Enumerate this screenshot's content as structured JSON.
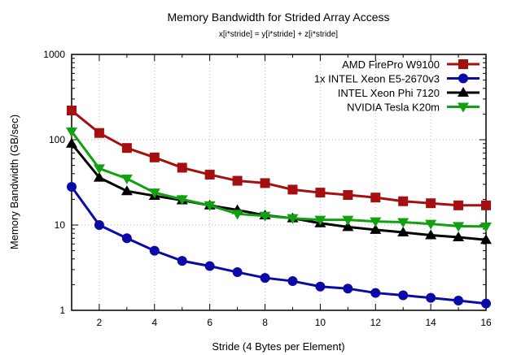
{
  "chart_data": {
    "type": "line",
    "title": "Memory Bandwidth for Strided Array Access",
    "subtitle": "x[i*stride] = y[i*stride] + z[i*stride]",
    "xlabel": "Stride (4 Bytes per Element)",
    "ylabel": "Memory Bandwidth (GB/sec)",
    "xlim": [
      1,
      16
    ],
    "ylim": [
      1,
      1000
    ],
    "yscale": "log",
    "grid": true,
    "legend": "top-right",
    "xticks": [
      2,
      4,
      6,
      8,
      10,
      12,
      14,
      16
    ],
    "yticks": [
      1,
      10,
      100,
      1000
    ],
    "x": [
      1,
      2,
      3,
      4,
      5,
      6,
      7,
      8,
      9,
      10,
      11,
      12,
      13,
      14,
      15,
      16
    ],
    "series": [
      {
        "name": "AMD FirePro W9100",
        "color": "#a50f0f",
        "marker": "square",
        "values": [
          220,
          120,
          80,
          62,
          47,
          39,
          33,
          31,
          26,
          24,
          22.5,
          21,
          19,
          18,
          17,
          17
        ]
      },
      {
        "name": "1x INTEL Xeon E5-2670v3",
        "color": "#0a0aa8",
        "marker": "circle",
        "values": [
          28,
          10,
          7,
          5,
          3.8,
          3.3,
          2.8,
          2.4,
          2.2,
          1.9,
          1.8,
          1.6,
          1.5,
          1.4,
          1.3,
          1.2
        ]
      },
      {
        "name": "INTEL Xeon Phi 7120",
        "color": "#000000",
        "marker": "triangle-up",
        "values": [
          90,
          36,
          25,
          22,
          19.5,
          17,
          15,
          13,
          12,
          10.5,
          9.5,
          8.8,
          8.2,
          7.6,
          7.2,
          6.7
        ]
      },
      {
        "name": "NVIDIA Tesla K20m",
        "color": "#10a010",
        "marker": "triangle-down",
        "values": [
          125,
          46,
          35,
          24,
          20,
          17,
          13.5,
          12.8,
          12,
          11.5,
          11.5,
          11,
          10.8,
          10.3,
          9.7,
          9.6
        ]
      }
    ]
  }
}
